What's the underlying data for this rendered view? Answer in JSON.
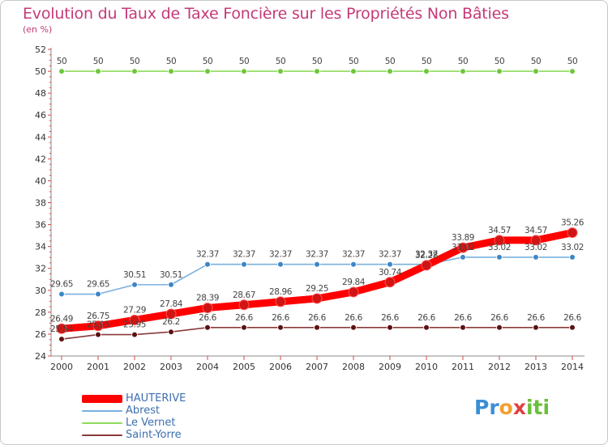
{
  "chart_data": {
    "type": "line",
    "title": "Evolution du Taux de Taxe Foncière sur les Propriétés Non Bâties",
    "ylabel": "(en %)",
    "xlabel": "",
    "x": [
      "2000",
      "2001",
      "2002",
      "2003",
      "2004",
      "2005",
      "2006",
      "2007",
      "2008",
      "2009",
      "2010",
      "2011",
      "2012",
      "2013",
      "2014"
    ],
    "ylim": [
      24,
      52
    ],
    "yticks": [
      24,
      26,
      28,
      30,
      32,
      34,
      36,
      38,
      40,
      42,
      44,
      46,
      48,
      50,
      52
    ],
    "grid": false,
    "legend_position": "bottom-left",
    "series": [
      {
        "name": "HAUTERIVE",
        "color": "#ff0000",
        "marker_color": "#d11414",
        "values": [
          26.49,
          26.75,
          27.29,
          27.84,
          28.39,
          28.67,
          28.96,
          29.25,
          29.84,
          30.74,
          32.28,
          33.89,
          34.57,
          34.57,
          35.26
        ],
        "labels": [
          "26.49",
          "26.75",
          "27.29",
          "27.84",
          "28.39",
          "28.67",
          "28.96",
          "29.25",
          "29.84",
          "30.74",
          "32.28",
          "33.89",
          "34.57",
          "34.57",
          "35.26"
        ]
      },
      {
        "name": "Abrest",
        "color": "#7ab0de",
        "marker_color": "#3d86c6",
        "values": [
          29.65,
          29.65,
          30.51,
          30.51,
          32.37,
          32.37,
          32.37,
          32.37,
          32.37,
          32.37,
          32.37,
          33.02,
          33.02,
          33.02,
          33.02
        ],
        "labels": [
          "29.65",
          "29.65",
          "30.51",
          "30.51",
          "32.37",
          "32.37",
          "32.37",
          "32.37",
          "32.37",
          "32.37",
          "32.37",
          "33.02",
          "33.02",
          "33.02",
          "33.02"
        ]
      },
      {
        "name": "Le Vernet",
        "color": "#8ddb5a",
        "marker_color": "#6fc63d",
        "values": [
          50,
          50,
          50,
          50,
          50,
          50,
          50,
          50,
          50,
          50,
          50,
          50,
          50,
          50,
          50
        ],
        "labels": [
          "50",
          "50",
          "50",
          "50",
          "50",
          "50",
          "50",
          "50",
          "50",
          "50",
          "50",
          "50",
          "50",
          "50",
          "50"
        ]
      },
      {
        "name": "Saint-Yorre",
        "color": "#8b3a3a",
        "marker_color": "#5c1111",
        "values": [
          25.54,
          25.95,
          25.95,
          26.2,
          26.6,
          26.6,
          26.6,
          26.6,
          26.6,
          26.6,
          26.6,
          26.6,
          26.6,
          26.6,
          26.6
        ],
        "labels": [
          "25.54",
          "25.95",
          "25.95",
          "26.2",
          "26.6",
          "26.6",
          "26.6",
          "26.6",
          "26.6",
          "26.6",
          "26.6",
          "26.6",
          "26.6",
          "26.6",
          "26.6"
        ]
      }
    ]
  },
  "brand": {
    "parts": [
      {
        "text": "Pr",
        "color": "#3a8fd6"
      },
      {
        "text": "o",
        "color": "#f0a030"
      },
      {
        "text": "x",
        "color": "#e04040"
      },
      {
        "text": "iti",
        "color": "#6bbf3a"
      }
    ]
  }
}
